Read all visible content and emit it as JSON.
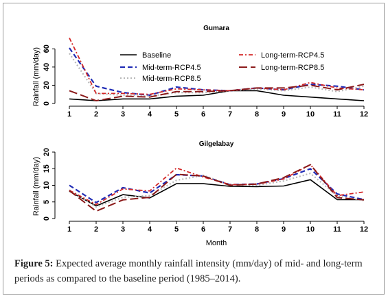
{
  "caption": {
    "label": "Figure 5:",
    "text": "Expected average monthly rainfall intensity (mm/day) of mid- and long-term periods as compared to the baseline period (1985–2014)."
  },
  "series_styles": [
    {
      "name": "Baseline",
      "color": "#000000",
      "dash": "",
      "width": 1.6
    },
    {
      "name": "Mid-term-RCP4.5",
      "color": "#1f2bb5",
      "dash": "7,4",
      "width": 2.2
    },
    {
      "name": "Mid-term-RCP8.5",
      "color": "#b8b8b8",
      "dash": "2,3",
      "width": 2.2
    },
    {
      "name": "Long-term-RCP4.5",
      "color": "#d42828",
      "dash": "6,3,2,3",
      "width": 1.8
    },
    {
      "name": "Long-term-RCP8.5",
      "color": "#8b1a1a",
      "dash": "12,5",
      "width": 2.0
    }
  ],
  "chart_data": [
    {
      "type": "line",
      "title": "Gumara",
      "ylabel": "Rainfall (mm/day)",
      "xlabel": "",
      "x": [
        1,
        2,
        3,
        4,
        5,
        6,
        7,
        8,
        9,
        10,
        11,
        12
      ],
      "ylim": [
        0,
        70
      ],
      "yticks": [
        0,
        20,
        40,
        60
      ],
      "legend": "inside-top",
      "series": [
        {
          "name": "Baseline",
          "values": [
            5,
            3,
            5,
            5,
            8,
            9,
            14,
            14,
            9,
            7,
            5,
            3
          ]
        },
        {
          "name": "Mid-term-RCP4.5",
          "values": [
            61,
            19,
            12,
            9,
            18,
            15,
            14,
            17,
            15,
            21,
            19,
            15
          ]
        },
        {
          "name": "Mid-term-RCP8.5",
          "values": [
            55,
            11,
            9,
            8,
            12,
            12,
            14,
            16,
            14,
            18,
            13,
            19
          ]
        },
        {
          "name": "Long-term-RCP4.5",
          "values": [
            72,
            11,
            11,
            10,
            16,
            15,
            14,
            17,
            15,
            23,
            17,
            15
          ]
        },
        {
          "name": "Long-term-RCP8.5",
          "values": [
            14,
            3,
            8,
            7,
            13,
            13,
            14,
            17,
            17,
            20,
            15,
            21
          ]
        }
      ]
    },
    {
      "type": "line",
      "title": "Gilgelabay",
      "ylabel": "Rainfall (mm/day)",
      "xlabel": "Month",
      "x": [
        1,
        2,
        3,
        4,
        5,
        6,
        7,
        8,
        9,
        10,
        11,
        12
      ],
      "ylim": [
        0,
        20
      ],
      "yticks": [
        0,
        5,
        10,
        15,
        20
      ],
      "series": [
        {
          "name": "Baseline",
          "values": [
            8.2,
            3.8,
            7.2,
            6.2,
            10.5,
            10.5,
            9.7,
            9.6,
            9.8,
            11.7,
            5.7,
            5.7
          ]
        },
        {
          "name": "Mid-term-RCP4.5",
          "values": [
            10,
            4.8,
            9.3,
            7.7,
            13.2,
            12.8,
            10.2,
            10.4,
            12,
            15,
            7.4,
            5.7
          ]
        },
        {
          "name": "Mid-term-RCP8.5",
          "values": [
            8.6,
            3.5,
            6.4,
            6.9,
            11.5,
            13,
            10.1,
            10,
            11.3,
            13.6,
            6.8,
            5.4
          ]
        },
        {
          "name": "Long-term-RCP4.5",
          "values": [
            8.5,
            4.2,
            8.9,
            8.3,
            15.2,
            12.5,
            10.2,
            10.3,
            11.9,
            16.2,
            6.9,
            8
          ]
        },
        {
          "name": "Long-term-RCP8.5",
          "values": [
            8.4,
            2.2,
            5.6,
            6.4,
            13.3,
            12.8,
            10,
            10.4,
            12.3,
            16.2,
            6.3,
            5.6
          ]
        }
      ]
    }
  ]
}
